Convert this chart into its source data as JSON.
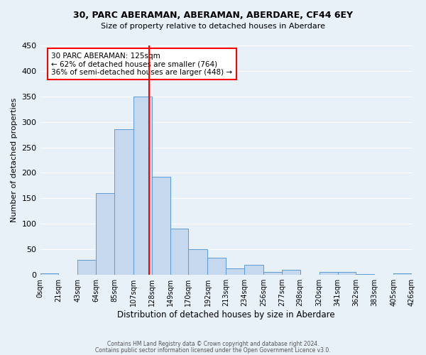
{
  "title": "30, PARC ABERAMAN, ABERAMAN, ABERDARE, CF44 6EY",
  "subtitle": "Size of property relative to detached houses in Aberdare",
  "xlabel": "Distribution of detached houses by size in Aberdare",
  "ylabel": "Number of detached properties",
  "bar_color": "#c5d8ed",
  "bar_edge_color": "#5b9bd5",
  "background_color": "#e8f0f8",
  "grid_color": "white",
  "vline_x": 125,
  "vline_color": "red",
  "bin_edges": [
    0,
    21,
    43,
    64,
    85,
    107,
    128,
    149,
    170,
    192,
    213,
    234,
    256,
    277,
    298,
    320,
    341,
    362,
    383,
    405,
    426
  ],
  "bin_labels": [
    "0sqm",
    "21sqm",
    "43sqm",
    "64sqm",
    "85sqm",
    "107sqm",
    "128sqm",
    "149sqm",
    "170sqm",
    "192sqm",
    "213sqm",
    "234sqm",
    "256sqm",
    "277sqm",
    "298sqm",
    "320sqm",
    "341sqm",
    "362sqm",
    "383sqm",
    "405sqm",
    "426sqm"
  ],
  "bar_heights": [
    3,
    0,
    30,
    160,
    285,
    350,
    192,
    90,
    50,
    33,
    12,
    20,
    6,
    10,
    0,
    5,
    5,
    2,
    0,
    3
  ],
  "ylim": [
    0,
    450
  ],
  "yticks": [
    0,
    50,
    100,
    150,
    200,
    250,
    300,
    350,
    400,
    450
  ],
  "annotation_title": "30 PARC ABERAMAN: 125sqm",
  "annotation_line1": "← 62% of detached houses are smaller (764)",
  "annotation_line2": "36% of semi-detached houses are larger (448) →",
  "annotation_box_color": "white",
  "annotation_box_edge_color": "red",
  "footer_line1": "Contains HM Land Registry data © Crown copyright and database right 2024.",
  "footer_line2": "Contains public sector information licensed under the Open Government Licence v3.0."
}
